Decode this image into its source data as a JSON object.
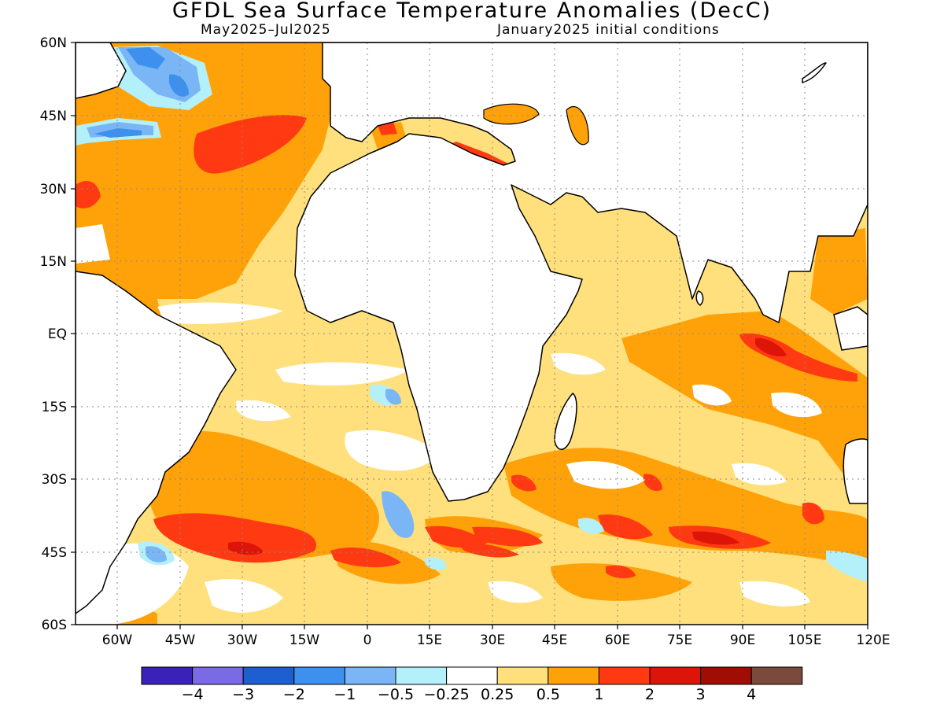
{
  "title": "GFDL Sea Surface Temperature Anomalies (DecC)",
  "subtitle_left": "May2025–Jul2025",
  "subtitle_right": "January2025 initial conditions",
  "lat_labels": [
    "60N",
    "45N",
    "30N",
    "15N",
    "EQ",
    "15S",
    "30S",
    "45S",
    "60S"
  ],
  "lon_labels": [
    "60W",
    "45W",
    "30W",
    "15W",
    "0",
    "15E",
    "30E",
    "45E",
    "60E",
    "75E",
    "90E",
    "105E",
    "120E"
  ],
  "colorbar": {
    "colors": [
      "#3a22b8",
      "#7a6ae6",
      "#1e5fcf",
      "#3e90ef",
      "#7ab6f5",
      "#b4f0fa",
      "#ffffff",
      "#ffe07c",
      "#ffa20a",
      "#ff3a12",
      "#dd1408",
      "#a00d05",
      "#7a4a3d"
    ],
    "labels": [
      "−4",
      "−3",
      "−2",
      "−1",
      "−0.5",
      "−0.25",
      "0.25",
      "0.5",
      "1",
      "2",
      "3",
      "4"
    ]
  },
  "map_extent": {
    "lon_min": -70,
    "lon_max": 120,
    "lat_min": -60,
    "lat_max": 60
  }
}
